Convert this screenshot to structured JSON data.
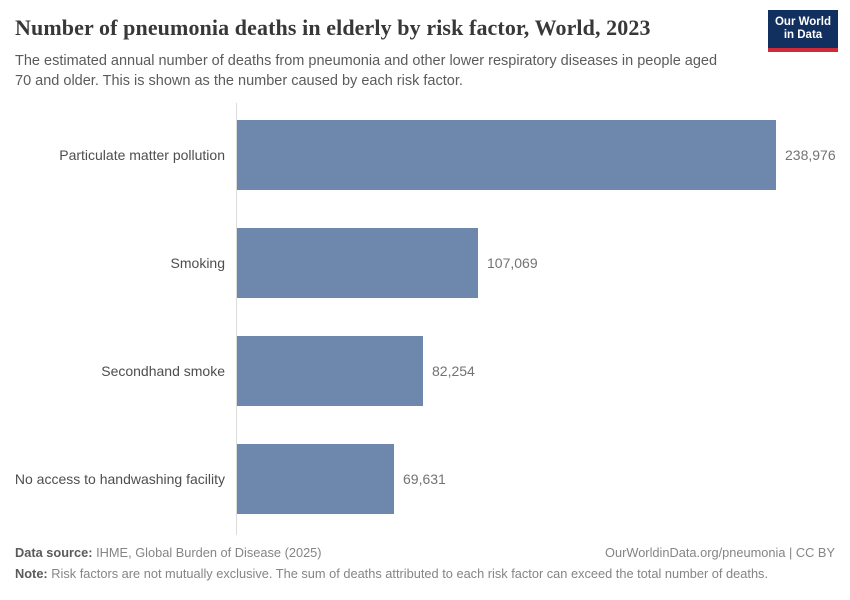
{
  "header": {
    "title": "Number of pneumonia deaths in elderly by risk factor, World, 2023",
    "subtitle_line1": "The estimated annual number of deaths from pneumonia and other lower respiratory diseases in people aged",
    "subtitle_line2": "70 and older. This is shown as the number caused by each risk factor.",
    "logo": {
      "line1": "Our World",
      "line2": "in Data",
      "bg_color": "#12305f",
      "accent_color": "#cf2b36"
    }
  },
  "chart_data": {
    "type": "bar",
    "orientation": "horizontal",
    "title": "Number of pneumonia deaths in elderly by risk factor, World, 2023",
    "categories": [
      "Particulate matter pollution",
      "Smoking",
      "Secondhand smoke",
      "No access to handwashing facility"
    ],
    "values": [
      238976,
      107069,
      82254,
      69631
    ],
    "value_labels": [
      "238,976",
      "107,069",
      "82,254",
      "69,631"
    ],
    "xlim": [
      0,
      238976
    ],
    "bar_color": "#6d87ad",
    "axis_color": "#dcdcdc",
    "grid": false,
    "legend": "none"
  },
  "footer": {
    "data_source_label": "Data source:",
    "data_source_text": " IHME, Global Burden of Disease (2025)",
    "attribution": "OurWorldinData.org/pneumonia | CC BY",
    "note_label": "Note:",
    "note_text": " Risk factors are not mutually exclusive. The sum of deaths attributed to each risk factor can exceed the total number of deaths."
  }
}
